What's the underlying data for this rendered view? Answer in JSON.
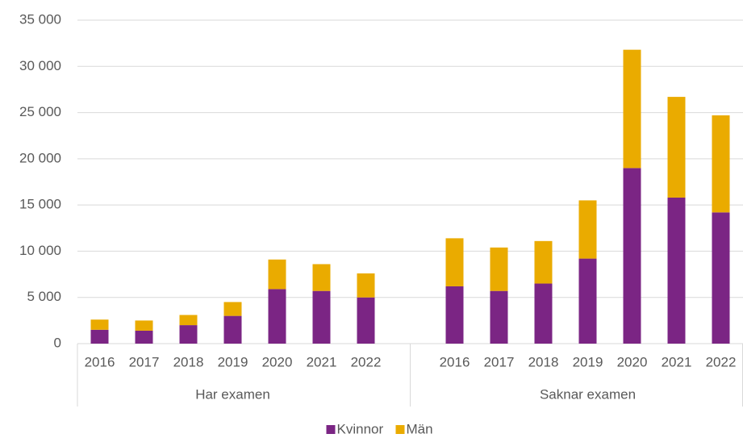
{
  "chart_data": {
    "type": "bar",
    "stacked": true,
    "categories": [
      "2016",
      "2017",
      "2018",
      "2019",
      "2020",
      "2021",
      "2022",
      null,
      "2016",
      "2017",
      "2018",
      "2019",
      "2020",
      "2021",
      "2022"
    ],
    "groups": [
      "Har examen",
      "Saknar examen"
    ],
    "series": [
      {
        "name": "Kvinnor",
        "color": "#7b2584",
        "values": [
          1500,
          1400,
          2000,
          3000,
          5900,
          5700,
          5000,
          null,
          6200,
          5700,
          6500,
          9200,
          19000,
          15800,
          14200
        ]
      },
      {
        "name": "Män",
        "color": "#eaab00",
        "values": [
          1100,
          1100,
          1100,
          1500,
          3200,
          2900,
          2600,
          null,
          5200,
          4700,
          4600,
          6300,
          12800,
          10900,
          10500
        ]
      }
    ],
    "ylim": [
      0,
      35000
    ],
    "yticks": [
      0,
      {
        "value": 5000,
        "label": "5 000"
      },
      {
        "value": 10000,
        "label": "10 000"
      },
      {
        "value": 15000,
        "label": "15 000"
      },
      {
        "value": 20000,
        "label": "20 000"
      },
      {
        "value": 25000,
        "label": "25 000"
      },
      {
        "value": 30000,
        "label": "30 000"
      },
      {
        "value": 35000,
        "label": "35 000"
      }
    ],
    "grid": true,
    "legend": "bottom"
  }
}
